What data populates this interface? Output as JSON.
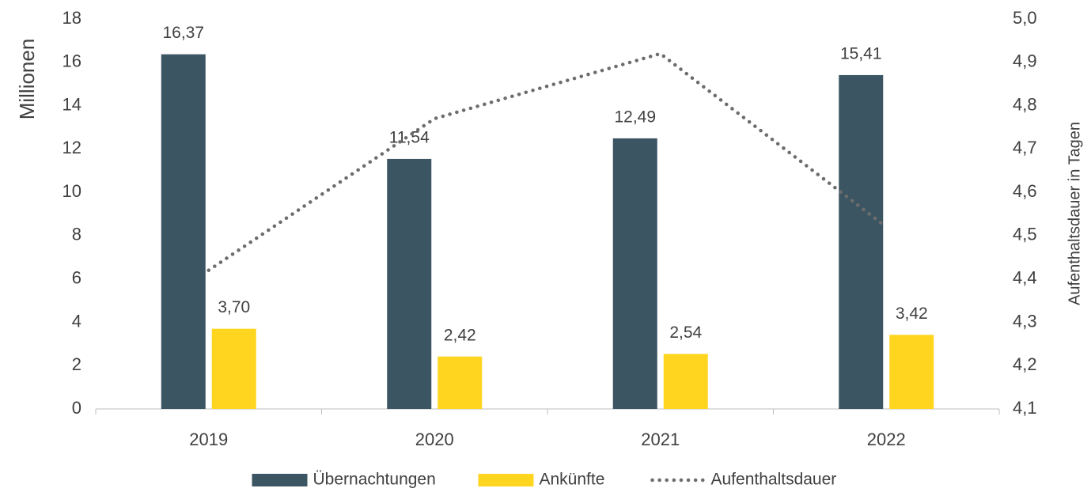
{
  "chart_data": {
    "type": "bar",
    "categories": [
      "2019",
      "2020",
      "2021",
      "2022"
    ],
    "y_label": "Millionen",
    "y2_label": "Aufenthaltsdauer in Tagen",
    "ylim": [
      0,
      18
    ],
    "yticks": [
      0,
      2,
      4,
      6,
      8,
      10,
      12,
      14,
      16,
      18
    ],
    "y2lim": [
      4.1,
      5.0
    ],
    "y2ticks": [
      {
        "value": 4.1,
        "label": "4,1"
      },
      {
        "value": 4.2,
        "label": "4,2"
      },
      {
        "value": 4.3,
        "label": "4,3"
      },
      {
        "value": 4.4,
        "label": "4,4"
      },
      {
        "value": 4.5,
        "label": "4,5"
      },
      {
        "value": 4.6,
        "label": "4,6"
      },
      {
        "value": 4.7,
        "label": "4,7"
      },
      {
        "value": 4.8,
        "label": "4,8"
      },
      {
        "value": 4.9,
        "label": "4,9"
      },
      {
        "value": 5.0,
        "label": "5,0"
      }
    ],
    "grid": false,
    "legend": "bottom",
    "series": [
      {
        "name": "Übernachtungen",
        "type": "bar",
        "color": "#3b5563",
        "values": [
          16.37,
          11.54,
          12.49,
          15.41
        ],
        "value_labels": [
          "16,37",
          "11,54",
          "12,49",
          "15,41"
        ]
      },
      {
        "name": "Ankünfte",
        "type": "bar",
        "color": "#ffd51f",
        "values": [
          3.7,
          2.42,
          2.54,
          3.42
        ],
        "value_labels": [
          "3,70",
          "2,42",
          "2,54",
          "3,42"
        ]
      },
      {
        "name": "Aufenthaltsdauer",
        "type": "line",
        "axis": "y2",
        "color": "#6d6d6d",
        "values": [
          4.42,
          4.77,
          4.92,
          4.52
        ]
      }
    ]
  }
}
